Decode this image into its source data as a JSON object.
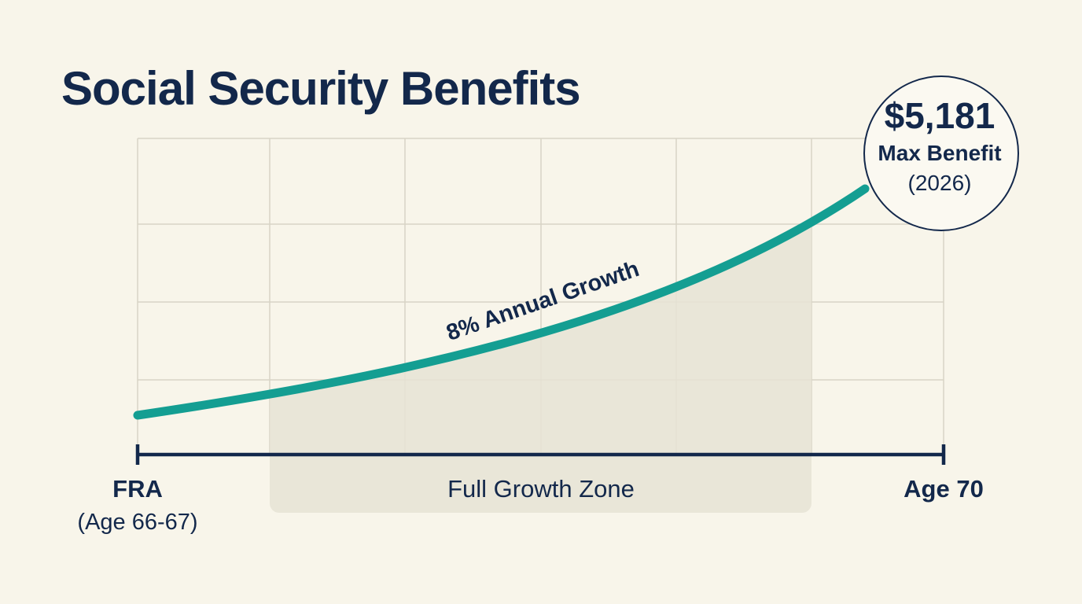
{
  "title": "Social Security Benefits",
  "callout": {
    "value": "$5,181",
    "label": "Max Benefit",
    "note": "(2026)"
  },
  "curve_label": "8% Annual Growth",
  "zone_label": "Full Growth Zone",
  "start": {
    "label": "FRA",
    "sublabel": "(Age 66-67)"
  },
  "end": {
    "label": "Age 70"
  }
}
